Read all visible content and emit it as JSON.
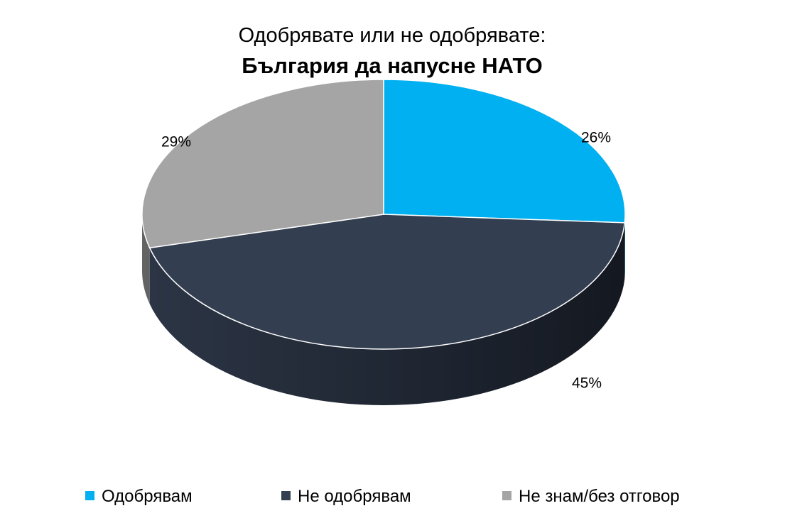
{
  "chart_data": {
    "type": "pie",
    "title": "Одобрявате или не одобрявате:",
    "subtitle": "България да напусне НАТО",
    "categories": [
      "Одобрявам",
      "Не одобрявам",
      "Не знам/без отговор"
    ],
    "values": [
      26,
      45,
      29
    ],
    "labels": [
      "26%",
      "45%",
      "29%"
    ],
    "colors": [
      "#00b0f0",
      "#333f50",
      "#a5a5a5"
    ],
    "legend_position": "bottom",
    "style": "3d"
  }
}
